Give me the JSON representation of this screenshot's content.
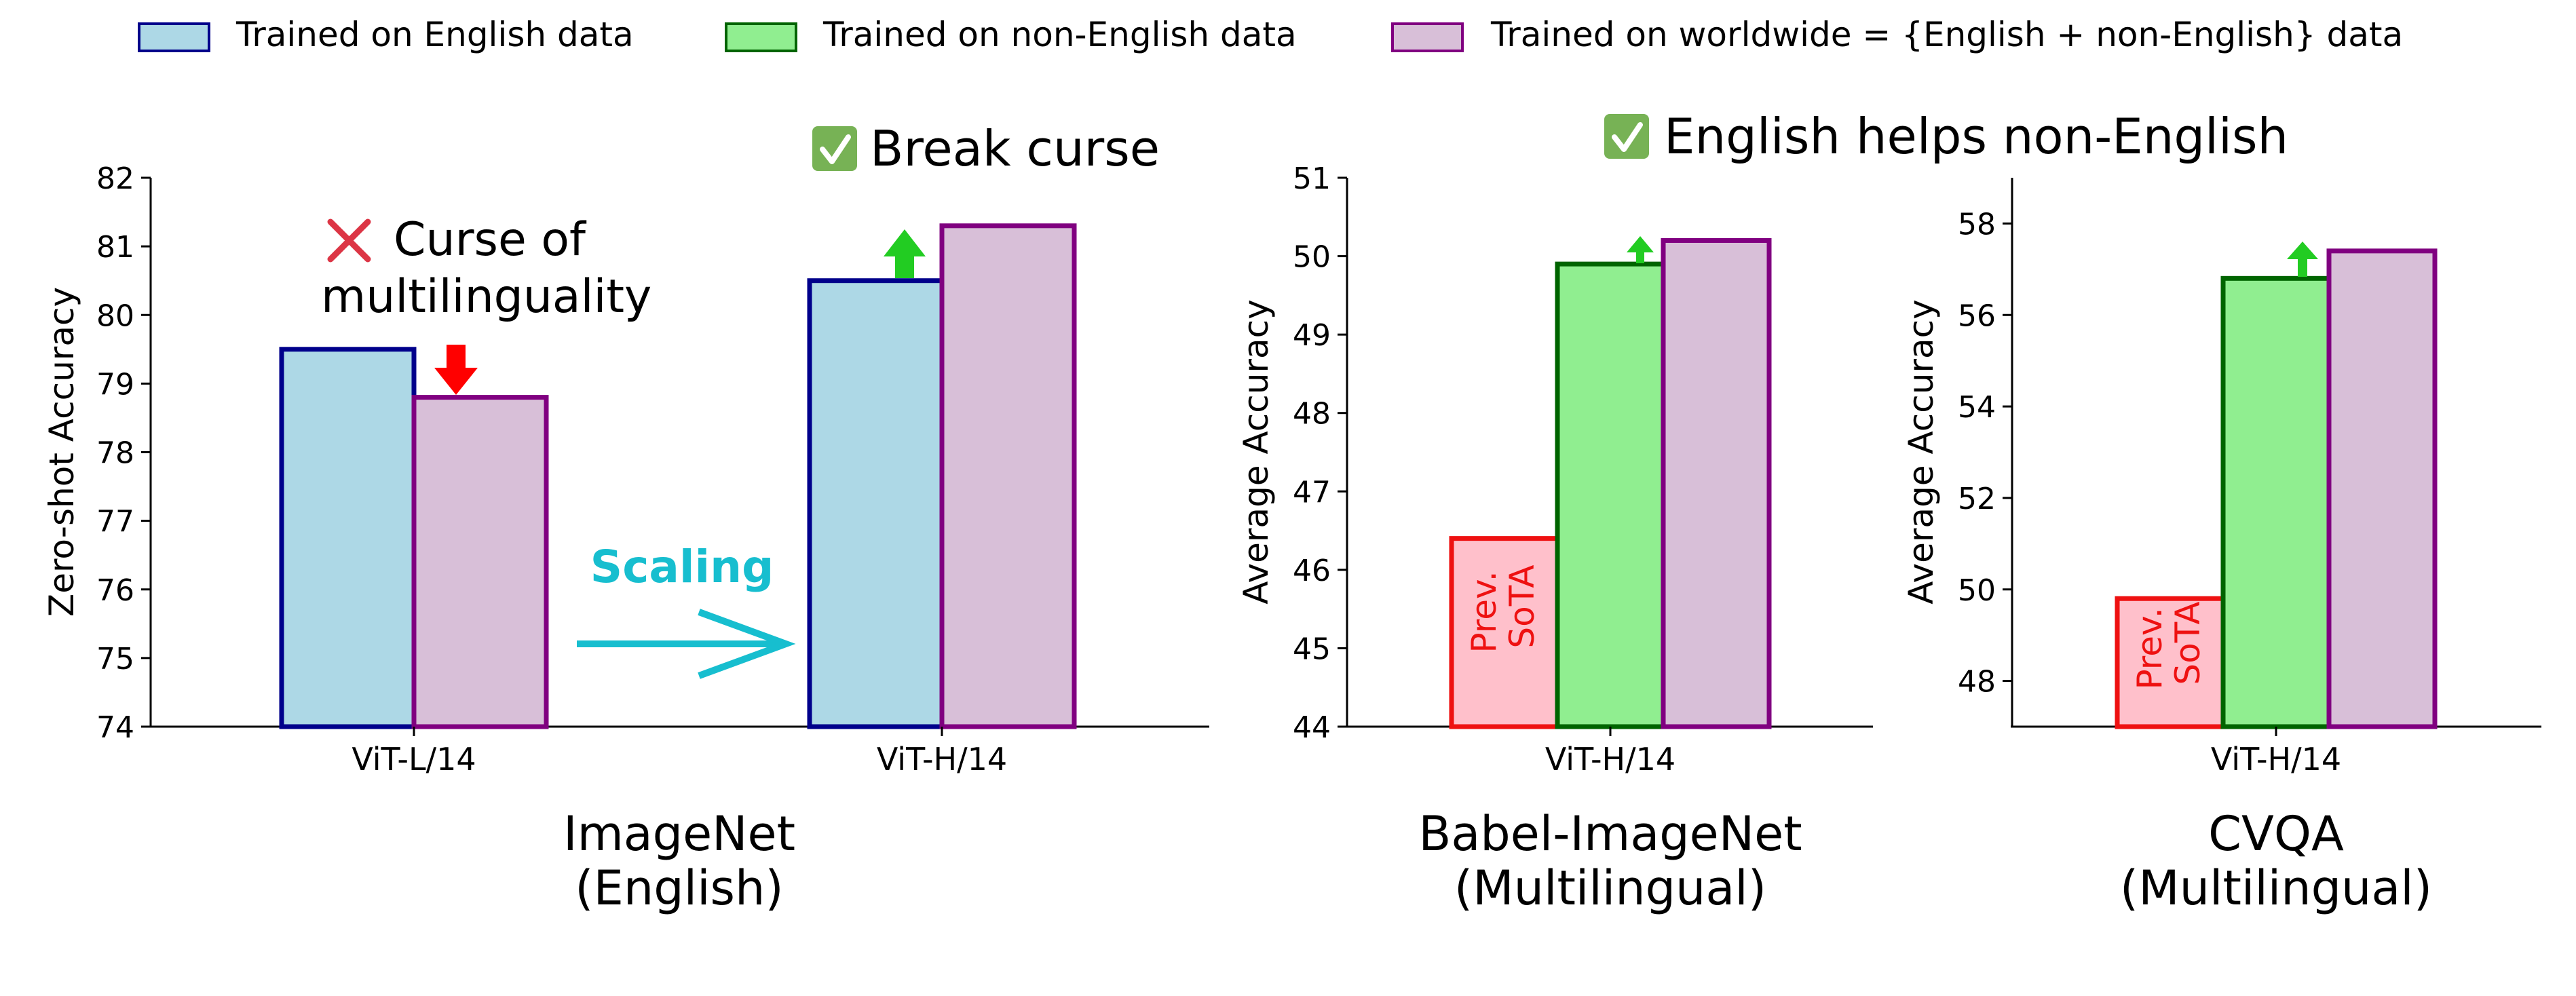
{
  "legend": {
    "items": [
      {
        "label": "Trained on English data",
        "fill": "#add8e6",
        "stroke": "#00008b"
      },
      {
        "label": "Trained on non-English data",
        "fill": "#90ee90",
        "stroke": "#006400"
      },
      {
        "label": "Trained on worldwide = {English + non-English} data",
        "fill": "#d8bfd8",
        "stroke": "#800080"
      }
    ]
  },
  "annotations": {
    "curse": "Curse of",
    "curse_line2": "multilinguality",
    "break_curse": "Break curse",
    "scaling": "Scaling",
    "english_helps": "English helps non-English",
    "prev_sota_line1": "Prev.",
    "prev_sota_line2": "SoTA"
  },
  "colors": {
    "english_fill": "#add8e6",
    "english_stroke": "#00008b",
    "nonenglish_fill": "#90ee90",
    "nonenglish_stroke": "#006400",
    "worldwide_fill": "#d8bfd8",
    "worldwide_stroke": "#800080",
    "sota_fill": "#ffc0cb",
    "sota_stroke": "#ee1111",
    "up_arrow": "#22cc22",
    "down_arrow": "#ff0000",
    "scaling": "#17becf",
    "cross": "#dc3545",
    "check": "#77b255"
  },
  "chart_data": [
    {
      "type": "bar",
      "title": "ImageNet",
      "title_line2": "(English)",
      "ylabel": "Zero-shot Accuracy",
      "ylim": [
        74,
        82
      ],
      "yticks": [
        74,
        75,
        76,
        77,
        78,
        79,
        80,
        81,
        82
      ],
      "categories": [
        "ViT-L/14",
        "ViT-H/14"
      ],
      "series": [
        {
          "name": "Trained on English data",
          "values": [
            79.5,
            80.5
          ]
        },
        {
          "name": "Trained on worldwide = {English + non-English} data",
          "values": [
            78.8,
            81.3
          ]
        }
      ]
    },
    {
      "type": "bar",
      "title": "Babel-ImageNet",
      "title_line2": "(Multilingual)",
      "ylabel": "Average Accuracy",
      "ylim": [
        44,
        51
      ],
      "yticks": [
        44,
        45,
        46,
        47,
        48,
        49,
        50,
        51
      ],
      "categories": [
        "ViT-H/14"
      ],
      "series": [
        {
          "name": "Prev. SoTA",
          "values": [
            46.4
          ]
        },
        {
          "name": "Trained on non-English data",
          "values": [
            49.9
          ]
        },
        {
          "name": "Trained on worldwide = {English + non-English} data",
          "values": [
            50.2
          ]
        }
      ]
    },
    {
      "type": "bar",
      "title": "CVQA",
      "title_line2": "(Multilingual)",
      "ylabel": "Average Accuracy",
      "ylim": [
        47,
        59
      ],
      "yticks": [
        48,
        50,
        52,
        54,
        56,
        58
      ],
      "categories": [
        "ViT-H/14"
      ],
      "series": [
        {
          "name": "Prev. SoTA",
          "values": [
            49.8
          ]
        },
        {
          "name": "Trained on non-English data",
          "values": [
            56.8
          ]
        },
        {
          "name": "Trained on worldwide = {English + non-English} data",
          "values": [
            57.4
          ]
        }
      ]
    }
  ]
}
